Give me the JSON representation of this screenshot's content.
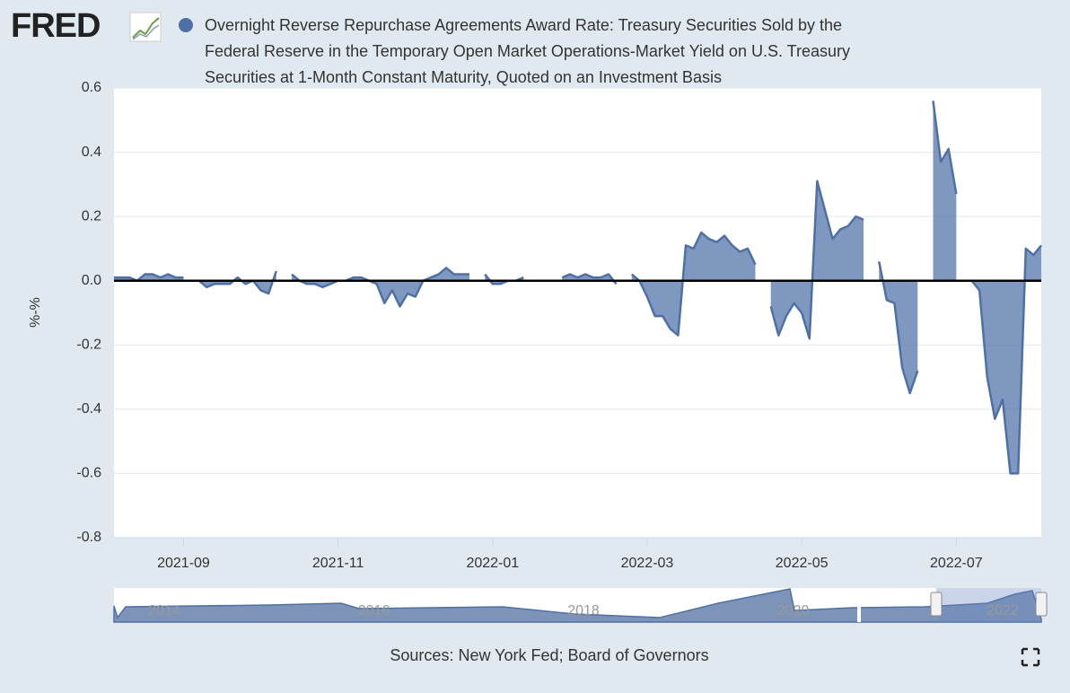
{
  "logo": "FRED",
  "chart_data": {
    "type": "area",
    "series": [
      {
        "name": "Overnight Reverse Repurchase Agreements Award Rate: Treasury Securities Sold by the Federal Reserve in the Temporary Open Market Operations-Market Yield on U.S. Treasury Securities at 1-Month Constant Maturity, Quoted on an Investment Basis",
        "color": "#4e70a6",
        "values": [
          0.01,
          0.01,
          0.01,
          0.0,
          0.02,
          0.02,
          0.01,
          0.02,
          0.01,
          0.01,
          null,
          0.0,
          -0.02,
          -0.01,
          -0.01,
          -0.01,
          0.01,
          -0.01,
          0.0,
          -0.03,
          -0.04,
          0.03,
          null,
          0.02,
          0.0,
          -0.01,
          -0.01,
          -0.02,
          -0.01,
          0.0,
          0.0,
          0.01,
          0.01,
          0.0,
          -0.01,
          -0.07,
          -0.03,
          -0.08,
          -0.04,
          -0.05,
          0.0,
          0.01,
          0.02,
          0.04,
          0.02,
          0.02,
          0.02,
          null,
          0.02,
          -0.01,
          -0.01,
          0.0,
          0.0,
          0.01,
          null,
          null,
          null,
          null,
          0.01,
          0.02,
          0.01,
          0.02,
          0.01,
          0.01,
          0.02,
          -0.01,
          null,
          0.02,
          0.0,
          -0.05,
          -0.11,
          -0.11,
          -0.15,
          -0.17,
          0.11,
          0.1,
          0.15,
          0.13,
          0.12,
          0.14,
          0.11,
          0.09,
          0.1,
          0.05,
          null,
          -0.08,
          -0.17,
          -0.11,
          -0.07,
          -0.1,
          -0.18,
          0.31,
          0.22,
          0.13,
          0.16,
          0.17,
          0.2,
          0.19,
          null,
          0.06,
          -0.06,
          -0.07,
          -0.27,
          -0.35,
          -0.28,
          null,
          0.56,
          0.37,
          0.41,
          0.27,
          null,
          0.0,
          -0.03,
          -0.3,
          -0.43,
          -0.37,
          -0.6,
          -0.6,
          0.1,
          0.08,
          0.11
        ]
      }
    ],
    "categories": [
      null,
      null,
      null,
      null,
      null,
      null,
      null,
      null,
      null,
      "2021-09",
      null,
      null,
      null,
      null,
      null,
      null,
      null,
      null,
      null,
      null,
      null,
      null,
      null,
      null,
      null,
      null,
      null,
      null,
      null,
      "2021-11",
      null,
      null,
      null,
      null,
      null,
      null,
      null,
      null,
      null,
      null,
      null,
      null,
      null,
      null,
      null,
      null,
      null,
      null,
      null,
      "2022-01",
      null,
      null,
      null,
      null,
      null,
      null,
      null,
      null,
      null,
      null,
      null,
      null,
      null,
      null,
      null,
      null,
      null,
      null,
      null,
      "2022-03",
      null,
      null,
      null,
      null,
      null,
      null,
      null,
      null,
      null,
      null,
      null,
      null,
      null,
      null,
      null,
      null,
      null,
      null,
      null,
      "2022-05",
      null,
      null,
      null,
      null,
      null,
      null,
      null,
      null,
      null,
      null,
      null,
      null,
      null,
      null,
      null,
      null,
      null,
      null,
      null,
      "2022-07",
      null,
      null,
      null,
      null,
      null,
      null,
      null,
      null,
      null,
      null,
      null
    ],
    "ylabel": "%-%",
    "ylim": [
      -0.8,
      0.6
    ],
    "yticks": [
      -0.8,
      -0.6,
      -0.4,
      -0.2,
      {
        "value": 0,
        "label": "0.0"
      },
      0.2,
      0.4,
      0.6
    ],
    "grid": true,
    "navigator": {
      "labels": [
        "2014",
        "2016",
        "2018",
        "2020",
        "2022"
      ]
    },
    "source": "Sources: New York Fed; Board of Governors"
  }
}
